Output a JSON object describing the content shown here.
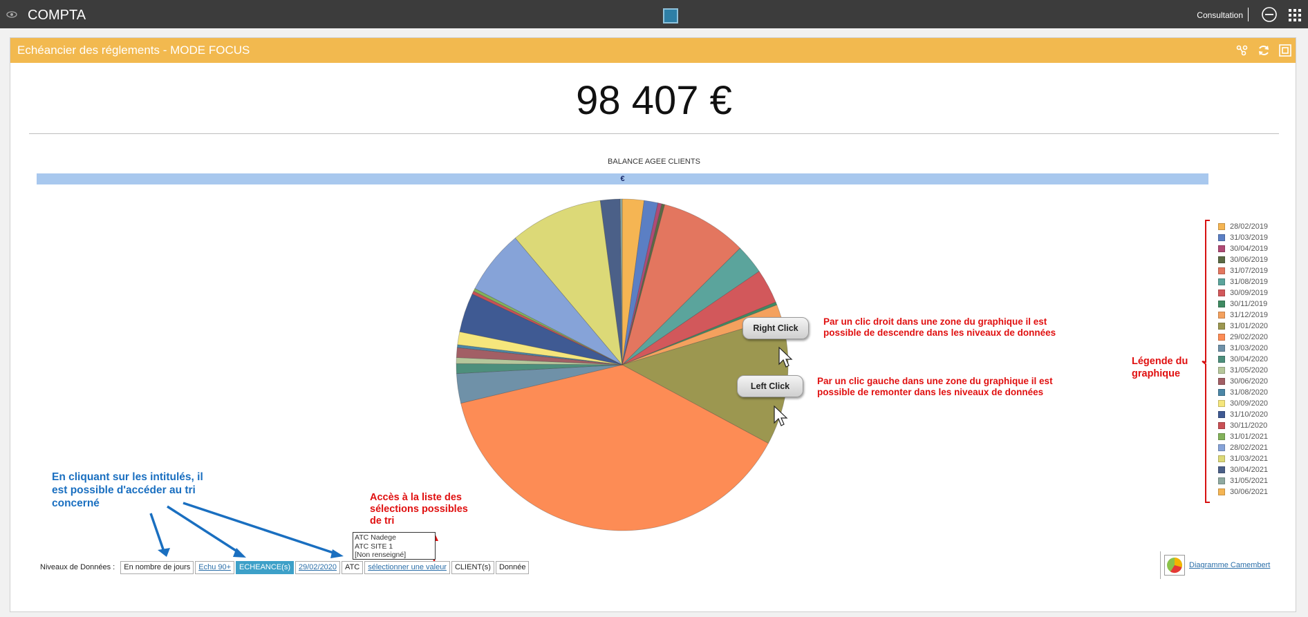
{
  "app": {
    "title": "COMPTA",
    "mode_label": "Consultation"
  },
  "panel": {
    "title": "Echéancier des réglements - MODE FOCUS"
  },
  "kpi": {
    "value": "98 407 €"
  },
  "chart_data": {
    "type": "pie",
    "title": "BALANCE AGEE CLIENTS",
    "unit_label": "€",
    "legend_position": "right",
    "categories": [
      "28/02/2019",
      "31/03/2019",
      "30/04/2019",
      "30/06/2019",
      "31/07/2019",
      "31/08/2019",
      "30/09/2019",
      "30/11/2019",
      "31/12/2019",
      "31/01/2020",
      "29/02/2020",
      "31/03/2020",
      "30/04/2020",
      "31/05/2020",
      "30/06/2020",
      "31/08/2020",
      "30/09/2020",
      "31/10/2020",
      "30/11/2020",
      "31/01/2021",
      "28/02/2021",
      "31/03/2021",
      "30/04/2021",
      "31/05/2021",
      "30/06/2021"
    ],
    "values": [
      2.2,
      1.4,
      0.4,
      0.3,
      8.8,
      3.0,
      3.5,
      0.3,
      1.3,
      13.0,
      40.0,
      3.0,
      1.0,
      0.6,
      1.0,
      0.3,
      1.3,
      4.0,
      0.3,
      0.3,
      6.5,
      9.4,
      2.0,
      0.2,
      0.0
    ],
    "colors": [
      "#f5b553",
      "#5b7fc4",
      "#b04a75",
      "#5b6a44",
      "#e3765f",
      "#5ba49c",
      "#d2585b",
      "#3f8a62",
      "#f4a15e",
      "#9c9750",
      "#fd8c55",
      "#6f91a8",
      "#4d8f7c",
      "#b6c79b",
      "#a25f65",
      "#4b86a6",
      "#f5e67c",
      "#3f5a93",
      "#c95055",
      "#83b25a",
      "#86a3d8",
      "#dcd977",
      "#4b6088",
      "#8fa9a0",
      "#f5b553"
    ]
  },
  "annotations": {
    "right_click_bubble": "Right Click",
    "left_click_bubble": "Left Click",
    "right_click_note": "Par un clic droit dans une zone du graphique il est possible de descendre dans les niveaux de données",
    "left_click_note": "Par un clic gauche dans une zone du graphique il est possible de remonter dans les niveaux de données",
    "legend_note": "Légende du graphique",
    "sort_note": "En cliquant sur les intitulés, il est possible d'accéder au tri concerné",
    "list_note": "Accès à la liste des sélections possibles de tri"
  },
  "levels": {
    "label": "Niveaux de Données :",
    "items": [
      "En nombre de jours",
      "Echu 90+",
      "ECHEANCE(s)",
      "29/02/2020",
      "ATC",
      "sélectionner une valeur",
      "CLIENT(s)",
      "Donnée"
    ]
  },
  "dropdown_options": [
    "ATC Nadege",
    "ATC SITE 1",
    "[Non renseigné]"
  ],
  "pie_link": {
    "label": "Diagramme Camembert"
  }
}
